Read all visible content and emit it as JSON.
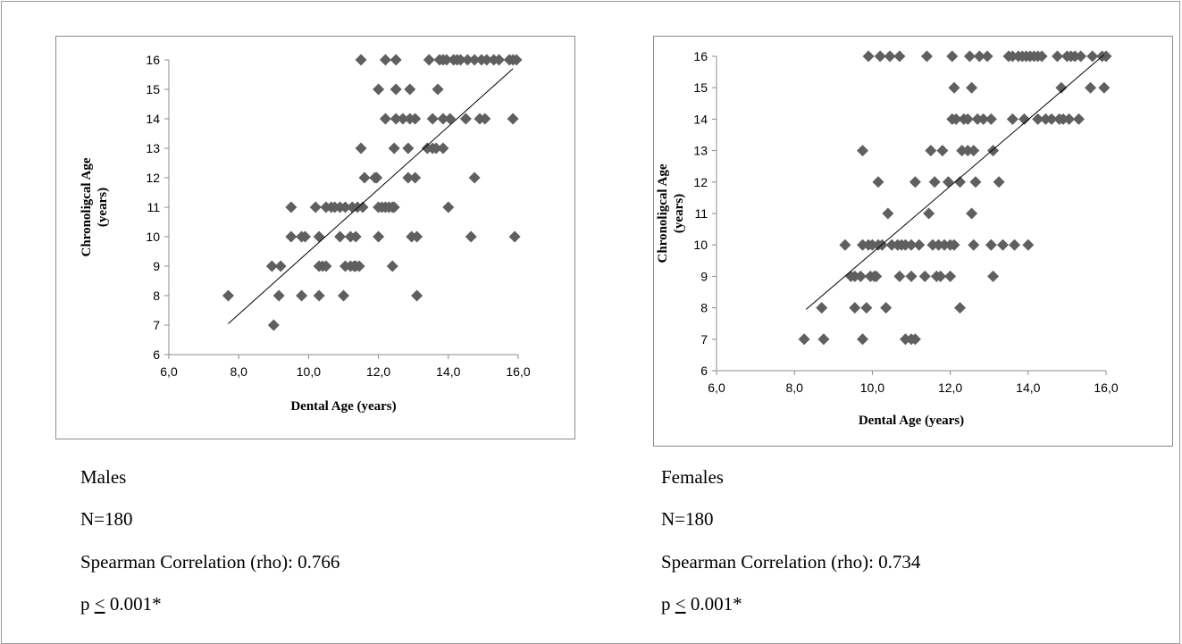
{
  "chart_data": [
    {
      "type": "scatter",
      "title": "",
      "xlabel": "Dental Age (years)",
      "ylabel": [
        "Chronoligcal Age",
        "(years)"
      ],
      "xlim": [
        6,
        16
      ],
      "ylim": [
        6,
        16
      ],
      "x_ticks": [
        "6,0",
        "8,0",
        "10,0",
        "12,0",
        "14,0",
        "16,0"
      ],
      "y_ticks": [
        "6",
        "7",
        "8",
        "9",
        "10",
        "11",
        "12",
        "13",
        "14",
        "15",
        "16"
      ],
      "grid": false,
      "marker_color": "#5f5f5f",
      "trendline": [
        [
          7.7,
          7.05
        ],
        [
          15.85,
          15.7
        ]
      ],
      "points": [
        [
          7.7,
          8
        ],
        [
          9.0,
          7
        ],
        [
          8.95,
          9
        ],
        [
          9.2,
          9
        ],
        [
          9.15,
          8
        ],
        [
          9.5,
          11
        ],
        [
          9.5,
          10
        ],
        [
          9.8,
          8
        ],
        [
          9.8,
          10
        ],
        [
          9.9,
          10
        ],
        [
          10.2,
          11
        ],
        [
          10.3,
          9
        ],
        [
          10.3,
          8
        ],
        [
          10.3,
          10
        ],
        [
          10.4,
          9
        ],
        [
          10.5,
          9
        ],
        [
          10.5,
          11
        ],
        [
          10.65,
          11
        ],
        [
          10.75,
          11
        ],
        [
          10.9,
          11
        ],
        [
          10.9,
          10
        ],
        [
          11.0,
          8
        ],
        [
          11.05,
          9
        ],
        [
          11.05,
          11
        ],
        [
          11.2,
          9
        ],
        [
          11.2,
          10
        ],
        [
          11.25,
          11
        ],
        [
          11.3,
          9
        ],
        [
          11.35,
          10
        ],
        [
          11.35,
          9
        ],
        [
          11.4,
          11
        ],
        [
          11.45,
          9
        ],
        [
          11.5,
          16
        ],
        [
          11.5,
          13
        ],
        [
          11.55,
          11
        ],
        [
          11.6,
          12
        ],
        [
          11.9,
          12
        ],
        [
          11.95,
          12
        ],
        [
          12.0,
          15
        ],
        [
          12.0,
          11
        ],
        [
          12.0,
          10
        ],
        [
          12.1,
          11
        ],
        [
          12.2,
          16
        ],
        [
          12.2,
          11
        ],
        [
          12.2,
          14
        ],
        [
          12.3,
          11
        ],
        [
          12.4,
          11
        ],
        [
          12.4,
          9
        ],
        [
          12.45,
          13
        ],
        [
          12.45,
          11
        ],
        [
          12.5,
          16
        ],
        [
          12.5,
          15
        ],
        [
          12.5,
          14
        ],
        [
          12.7,
          14
        ],
        [
          12.85,
          13
        ],
        [
          12.85,
          12
        ],
        [
          12.9,
          15
        ],
        [
          12.9,
          14
        ],
        [
          12.95,
          10
        ],
        [
          13.05,
          14
        ],
        [
          13.05,
          12
        ],
        [
          13.1,
          10
        ],
        [
          13.1,
          8
        ],
        [
          13.4,
          13
        ],
        [
          13.45,
          16
        ],
        [
          13.55,
          14
        ],
        [
          13.55,
          13
        ],
        [
          13.65,
          13
        ],
        [
          13.7,
          15
        ],
        [
          13.75,
          16
        ],
        [
          13.85,
          16
        ],
        [
          13.85,
          14
        ],
        [
          13.85,
          13
        ],
        [
          13.95,
          16
        ],
        [
          14.0,
          11
        ],
        [
          14.05,
          14
        ],
        [
          14.15,
          16
        ],
        [
          14.25,
          16
        ],
        [
          14.35,
          16
        ],
        [
          14.5,
          14
        ],
        [
          14.55,
          16
        ],
        [
          14.65,
          10
        ],
        [
          14.75,
          16
        ],
        [
          14.75,
          12
        ],
        [
          14.9,
          14
        ],
        [
          14.95,
          16
        ],
        [
          15.05,
          14
        ],
        [
          15.1,
          16
        ],
        [
          15.3,
          16
        ],
        [
          15.45,
          16
        ],
        [
          15.75,
          16
        ],
        [
          15.85,
          16
        ],
        [
          15.85,
          14
        ],
        [
          15.9,
          10
        ],
        [
          15.95,
          16
        ]
      ]
    },
    {
      "type": "scatter",
      "title": "",
      "xlabel": "Dental Age (years)",
      "ylabel": [
        "Chronoligcal Age",
        "(years)"
      ],
      "xlim": [
        6,
        16
      ],
      "ylim": [
        6,
        16
      ],
      "x_ticks": [
        "6,0",
        "8,0",
        "10,0",
        "12,0",
        "14,0",
        "16,0"
      ],
      "y_ticks": [
        "6",
        "7",
        "8",
        "9",
        "10",
        "11",
        "12",
        "13",
        "14",
        "15",
        "16"
      ],
      "grid": false,
      "marker_color": "#5f5f5f",
      "trendline": [
        [
          8.3,
          7.95
        ],
        [
          15.95,
          16.05
        ]
      ],
      "points": [
        [
          8.25,
          7
        ],
        [
          8.75,
          7
        ],
        [
          8.7,
          8
        ],
        [
          9.3,
          10
        ],
        [
          9.45,
          9
        ],
        [
          9.55,
          9
        ],
        [
          9.55,
          8
        ],
        [
          9.7,
          9
        ],
        [
          9.75,
          10
        ],
        [
          9.75,
          7
        ],
        [
          9.75,
          13
        ],
        [
          9.85,
          8
        ],
        [
          9.9,
          16
        ],
        [
          9.9,
          10
        ],
        [
          9.95,
          9
        ],
        [
          10.0,
          10
        ],
        [
          10.05,
          9
        ],
        [
          10.1,
          9
        ],
        [
          10.15,
          12
        ],
        [
          10.15,
          10
        ],
        [
          10.2,
          16
        ],
        [
          10.25,
          10
        ],
        [
          10.35,
          8
        ],
        [
          10.4,
          11
        ],
        [
          10.45,
          16
        ],
        [
          10.5,
          10
        ],
        [
          10.65,
          10
        ],
        [
          10.7,
          16
        ],
        [
          10.7,
          9
        ],
        [
          10.75,
          10
        ],
        [
          10.85,
          7
        ],
        [
          10.85,
          10
        ],
        [
          11.0,
          10
        ],
        [
          11.0,
          7
        ],
        [
          11.0,
          9
        ],
        [
          11.1,
          12
        ],
        [
          11.1,
          7
        ],
        [
          11.2,
          10
        ],
        [
          11.35,
          9
        ],
        [
          11.4,
          16
        ],
        [
          11.45,
          11
        ],
        [
          11.5,
          13
        ],
        [
          11.55,
          10
        ],
        [
          11.6,
          12
        ],
        [
          11.65,
          9
        ],
        [
          11.7,
          10
        ],
        [
          11.75,
          9
        ],
        [
          11.8,
          13
        ],
        [
          11.85,
          10
        ],
        [
          11.95,
          12
        ],
        [
          12.0,
          10
        ],
        [
          12.0,
          9
        ],
        [
          12.05,
          16
        ],
        [
          12.05,
          14
        ],
        [
          12.1,
          10
        ],
        [
          12.1,
          15
        ],
        [
          12.15,
          14
        ],
        [
          12.25,
          12
        ],
        [
          12.25,
          8
        ],
        [
          12.3,
          13
        ],
        [
          12.35,
          14
        ],
        [
          12.45,
          13
        ],
        [
          12.45,
          14
        ],
        [
          12.5,
          16
        ],
        [
          12.55,
          15
        ],
        [
          12.55,
          11
        ],
        [
          12.6,
          13
        ],
        [
          12.6,
          10
        ],
        [
          12.65,
          12
        ],
        [
          12.7,
          14
        ],
        [
          12.75,
          16
        ],
        [
          12.85,
          14
        ],
        [
          12.95,
          16
        ],
        [
          13.05,
          14
        ],
        [
          13.05,
          10
        ],
        [
          13.1,
          9
        ],
        [
          13.1,
          13
        ],
        [
          13.25,
          12
        ],
        [
          13.35,
          10
        ],
        [
          13.5,
          16
        ],
        [
          13.6,
          16
        ],
        [
          13.6,
          14
        ],
        [
          13.65,
          10
        ],
        [
          13.75,
          16
        ],
        [
          13.85,
          16
        ],
        [
          13.9,
          14
        ],
        [
          13.95,
          16
        ],
        [
          14.0,
          10
        ],
        [
          14.05,
          16
        ],
        [
          14.15,
          16
        ],
        [
          14.25,
          16
        ],
        [
          14.25,
          14
        ],
        [
          14.35,
          16
        ],
        [
          14.45,
          14
        ],
        [
          14.6,
          14
        ],
        [
          14.75,
          16
        ],
        [
          14.8,
          14
        ],
        [
          14.85,
          15
        ],
        [
          14.9,
          14
        ],
        [
          15.0,
          16
        ],
        [
          15.05,
          14
        ],
        [
          15.1,
          16
        ],
        [
          15.2,
          16
        ],
        [
          15.3,
          14
        ],
        [
          15.35,
          16
        ],
        [
          15.6,
          15
        ],
        [
          15.65,
          16
        ],
        [
          15.9,
          16
        ],
        [
          15.95,
          15
        ],
        [
          16.0,
          16
        ]
      ]
    }
  ],
  "captions": {
    "left": {
      "group": "Males",
      "n": "N=180",
      "correlation": "Spearman Correlation (rho): 0.766",
      "p_prefix": "p ",
      "p_sign": "<",
      "p_value": " 0.001*"
    },
    "right": {
      "group": "Females",
      "n": "N=180",
      "correlation": "Spearman Correlation (rho): 0.734",
      "p_prefix": "p ",
      "p_sign": "<",
      "p_value": " 0.001*"
    }
  }
}
